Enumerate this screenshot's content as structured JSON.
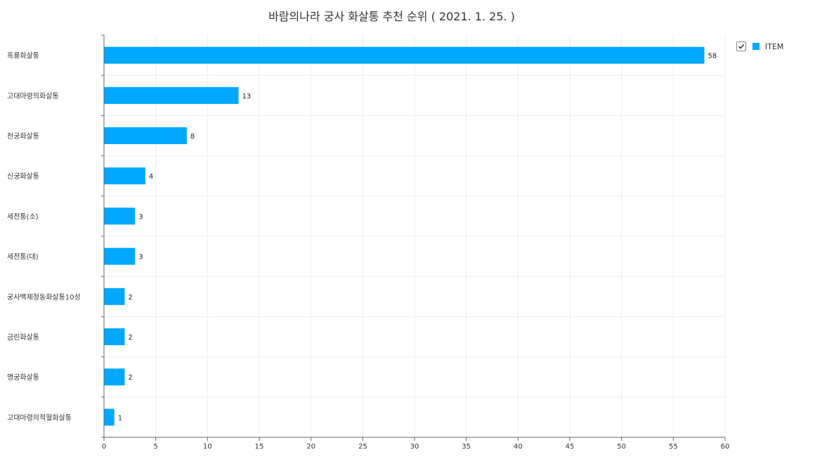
{
  "chart_data": {
    "type": "bar",
    "orientation": "horizontal",
    "title": "바람의나라 궁사 화살통 추천 순위 ( 2021. 1. 25. )",
    "categories": [
      "흑룡화살통",
      "고대마령의화살통",
      "천궁화살통",
      "신궁화살통",
      "세전통(소)",
      "세전통(대)",
      "궁사백제청동화살통10성",
      "금린화살통",
      "명궁화살통",
      "고대마령의적혈화살통"
    ],
    "series": [
      {
        "name": "ITEM",
        "values": [
          58,
          13,
          8,
          4,
          3,
          3,
          2,
          2,
          2,
          1
        ],
        "color": "#00a8ff"
      }
    ],
    "xlim": [
      0,
      60
    ],
    "xticks": [
      0,
      5,
      10,
      15,
      20,
      25,
      30,
      35,
      40,
      45,
      50,
      55,
      60
    ],
    "grid": true,
    "legend": "top-right"
  }
}
